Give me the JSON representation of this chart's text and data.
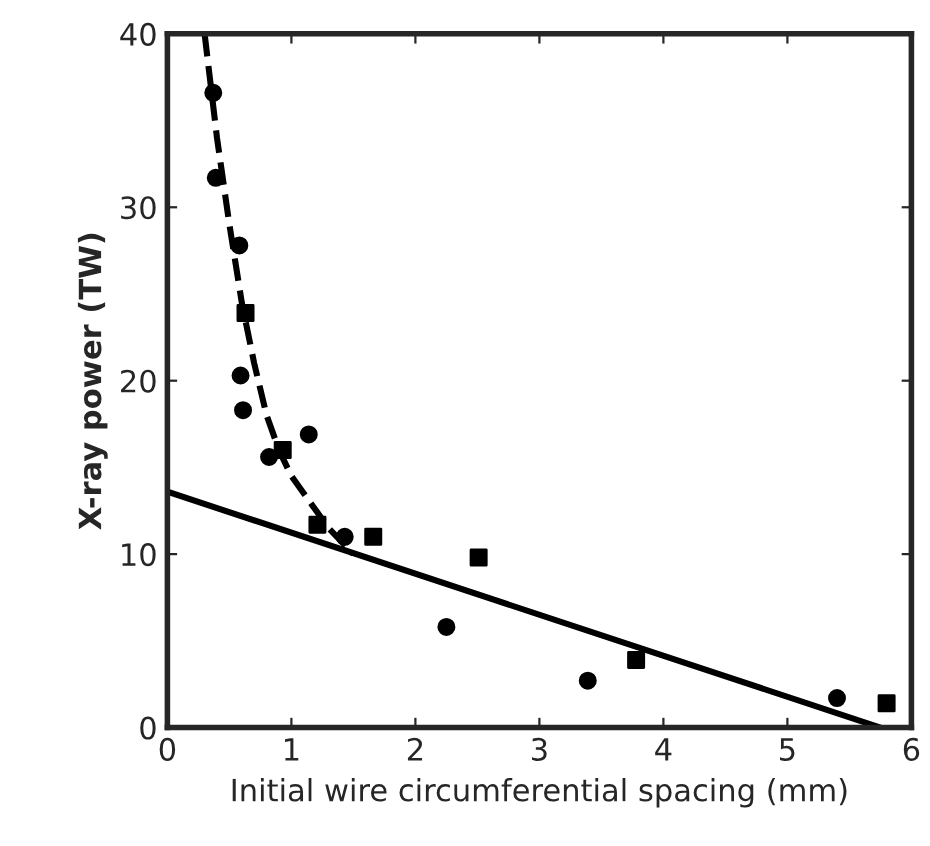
{
  "chart_data": {
    "type": "scatter",
    "xlabel": "Initial wire circumferential spacing (mm)",
    "ylabel": "X-ray power (TW)",
    "xlim": [
      0,
      6
    ],
    "ylim": [
      0,
      40
    ],
    "xticks": [
      0,
      1,
      2,
      3,
      4,
      5,
      6
    ],
    "yticks": [
      0,
      10,
      20,
      30,
      40
    ],
    "grid": false,
    "legend": false,
    "series": [
      {
        "marker": "circle",
        "color": "#000000",
        "x": [
          0.37,
          0.39,
          0.58,
          0.59,
          0.61,
          0.82,
          1.14,
          1.43,
          2.25,
          3.39,
          5.4
        ],
        "values": [
          36.6,
          31.7,
          27.8,
          20.3,
          18.3,
          15.6,
          16.9,
          11.0,
          5.8,
          2.7,
          1.7
        ]
      },
      {
        "marker": "square",
        "color": "#000000",
        "x": [
          0.63,
          0.93,
          1.21,
          1.66,
          2.51,
          3.78,
          5.8
        ],
        "values": [
          23.9,
          16.0,
          11.7,
          11.0,
          9.8,
          3.9,
          1.4
        ]
      },
      {
        "type": "line",
        "line_style": "solid",
        "color": "#000000",
        "x": [
          0,
          5.75
        ],
        "values": [
          13.6,
          0
        ]
      },
      {
        "type": "line",
        "line_style": "dashed",
        "color": "#000000",
        "x": [
          0.3,
          0.4,
          0.5,
          0.6,
          0.7,
          0.8,
          0.9,
          1.0,
          1.15,
          1.3,
          1.5
        ],
        "values": [
          40,
          34,
          29,
          24.5,
          21,
          18,
          16,
          14.5,
          13,
          11.5,
          10
        ]
      }
    ]
  }
}
